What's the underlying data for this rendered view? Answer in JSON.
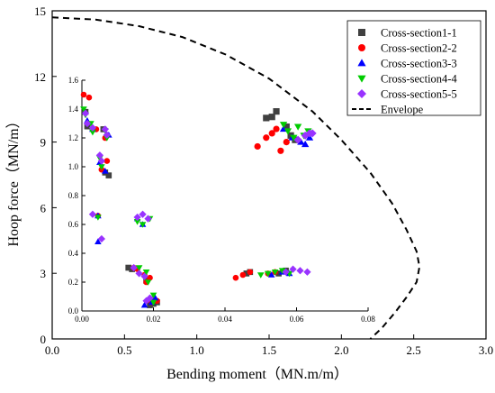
{
  "chart_data": [
    {
      "type": "scatter",
      "title": "",
      "xlabel": "Bending moment（MN.m/m）",
      "ylabel": "Hoop force（MN/m）",
      "xlim": [
        0.0,
        3.0
      ],
      "ylim": [
        0,
        15
      ],
      "xticks": [
        "0.0",
        "0.5",
        "1.0",
        "1.5",
        "2.0",
        "2.5",
        "3.0"
      ],
      "yticks": [
        "0",
        "3",
        "6",
        "9",
        "12",
        "15"
      ],
      "xtick_values": [
        0.0,
        0.5,
        1.0,
        1.5,
        2.0,
        2.5,
        3.0
      ],
      "ytick_values": [
        0,
        3,
        6,
        9,
        12,
        15
      ],
      "legend_position": "top-right",
      "series": [
        {
          "name": "Cross-section1-1",
          "marker": "square",
          "color": "#404040",
          "x": [
            1.48,
            1.52,
            1.55,
            1.62,
            1.65,
            1.68
          ],
          "y": [
            10.1,
            10.15,
            10.4,
            9.7,
            9.3,
            9.1
          ]
        },
        {
          "name": "Cross-section2-2",
          "marker": "circle",
          "color": "#ff0000",
          "x": [
            1.42,
            1.48,
            1.52,
            1.55,
            1.58,
            1.62
          ],
          "y": [
            8.8,
            9.2,
            9.4,
            9.6,
            8.6,
            9.0
          ]
        },
        {
          "name": "Cross-section3-3",
          "marker": "triangle-up",
          "color": "#0000ff",
          "x": [
            1.6,
            1.66,
            1.72,
            1.75,
            1.78
          ],
          "y": [
            9.6,
            9.2,
            9.0,
            8.9,
            9.2
          ]
        },
        {
          "name": "Cross-section4-4",
          "marker": "triangle-down",
          "color": "#00cc00",
          "x": [
            1.6,
            1.63,
            1.67,
            1.7,
            1.74,
            1.77
          ],
          "y": [
            9.8,
            9.5,
            9.2,
            9.7,
            9.3,
            9.5
          ]
        },
        {
          "name": "Cross-section5-5",
          "marker": "diamond",
          "color": "#9933ff",
          "x": [
            1.7,
            1.75,
            1.78,
            1.8
          ],
          "y": [
            9.1,
            9.3,
            9.4,
            9.4
          ]
        },
        {
          "name": "Envelope",
          "line": "dashed",
          "color": "#000000",
          "x": [
            0.0,
            0.3,
            0.6,
            0.9,
            1.2,
            1.5,
            1.8,
            2.0,
            2.2,
            2.35,
            2.45,
            2.52,
            2.54,
            2.52,
            2.45,
            2.37,
            2.28,
            2.2
          ],
          "y": [
            14.7,
            14.6,
            14.3,
            13.8,
            13.0,
            11.9,
            10.4,
            9.1,
            7.6,
            6.2,
            5.0,
            4.0,
            3.3,
            2.6,
            1.9,
            1.2,
            0.5,
            0.0
          ]
        }
      ]
    },
    {
      "type": "scatter",
      "title": "",
      "xlabel": "",
      "ylabel": "",
      "xlim": [
        0.0,
        0.08
      ],
      "ylim": [
        0.0,
        1.6
      ],
      "xticks": [
        "0.00",
        "0.02",
        "0.04",
        "0.06",
        "0.08"
      ],
      "yticks": [
        "0.0",
        "0.2",
        "0.4",
        "0.6",
        "0.8",
        "1.0",
        "1.2",
        "1.4",
        "1.6"
      ],
      "xtick_values": [
        0.0,
        0.02,
        0.04,
        0.06,
        0.08
      ],
      "ytick_values": [
        0.0,
        0.2,
        0.4,
        0.6,
        0.8,
        1.0,
        1.2,
        1.4,
        1.6
      ],
      "series": [
        {
          "name": "Cross-section1-1",
          "marker": "square",
          "color": "#404040",
          "x": [
            0.001,
            0.0015,
            0.006,
            0.0065,
            0.0075,
            0.013,
            0.014,
            0.018,
            0.019,
            0.02,
            0.021
          ],
          "y": [
            1.38,
            1.28,
            1.26,
            0.96,
            0.94,
            0.3,
            0.29,
            0.21,
            0.04,
            0.05,
            0.06
          ]
        },
        {
          "name": "Cross-section2-2",
          "marker": "circle",
          "color": "#ff0000",
          "x": [
            0.0005,
            0.002,
            0.004,
            0.0055,
            0.0065,
            0.007,
            0.0045,
            0.0145,
            0.0155,
            0.0175,
            0.018,
            0.019,
            0.0195,
            0.02,
            0.021
          ],
          "y": [
            1.5,
            1.48,
            1.26,
            0.98,
            1.2,
            1.04,
            0.66,
            0.3,
            0.29,
            0.25,
            0.2,
            0.23,
            0.06,
            0.08,
            0.07
          ]
        },
        {
          "name": "Cross-section3-3",
          "marker": "triangle-up",
          "color": "#0000ff",
          "x": [
            0.0015,
            0.003,
            0.005,
            0.0065,
            0.0075,
            0.0045,
            0.0045,
            0.0155,
            0.017,
            0.0175,
            0.0195,
            0.0205
          ],
          "y": [
            1.32,
            1.26,
            1.03,
            0.97,
            1.22,
            0.66,
            0.48,
            0.64,
            0.6,
            0.04,
            0.06,
            0.09
          ]
        },
        {
          "name": "Cross-section4-4",
          "marker": "triangle-down",
          "color": "#00cc00",
          "x": [
            0.0005,
            0.001,
            0.0025,
            0.003,
            0.005,
            0.0055,
            0.0065,
            0.007,
            0.0045,
            0.0155,
            0.017,
            0.019,
            0.016,
            0.018,
            0.0185,
            0.02,
            0.02
          ],
          "y": [
            1.4,
            1.36,
            1.3,
            1.24,
            1.06,
            1.0,
            1.25,
            1.2,
            0.65,
            0.62,
            0.6,
            0.64,
            0.3,
            0.27,
            0.2,
            0.11,
            0.06
          ]
        },
        {
          "name": "Cross-section5-5",
          "marker": "diamond",
          "color": "#9933ff",
          "x": [
            0.001,
            0.0015,
            0.003,
            0.005,
            0.0055,
            0.0065,
            0.007,
            0.003,
            0.0055,
            0.0155,
            0.017,
            0.0185,
            0.0145,
            0.016,
            0.0175,
            0.018,
            0.019
          ],
          "y": [
            1.37,
            1.3,
            1.27,
            1.08,
            1.04,
            1.26,
            1.22,
            0.67,
            0.5,
            0.65,
            0.67,
            0.64,
            0.3,
            0.26,
            0.24,
            0.07,
            0.09
          ]
        }
      ]
    },
    {
      "type": "scatter",
      "title": "",
      "xlabel": "",
      "ylabel": "",
      "xlim": [
        0.0,
        0.08
      ],
      "ylim": [
        0.0,
        1.6
      ],
      "series": [
        {
          "name": "Cross-section1-1",
          "marker": "square",
          "color": "#404040",
          "x": [
            0.046,
            0.047,
            0.055,
            0.057
          ],
          "y": [
            0.26,
            0.27,
            0.26,
            0.28
          ]
        },
        {
          "name": "Cross-section2-2",
          "marker": "circle",
          "color": "#ff0000",
          "x": [
            0.043,
            0.045,
            0.047,
            0.052,
            0.054
          ],
          "y": [
            0.23,
            0.25,
            0.27,
            0.26,
            0.27
          ]
        },
        {
          "name": "Cross-section3-3",
          "marker": "triangle-up",
          "color": "#0000ff",
          "x": [
            0.053,
            0.056,
            0.058
          ],
          "y": [
            0.25,
            0.27,
            0.26
          ]
        },
        {
          "name": "Cross-section4-4",
          "marker": "triangle-down",
          "color": "#00cc00",
          "x": [
            0.05,
            0.052,
            0.054,
            0.056,
            0.058
          ],
          "y": [
            0.25,
            0.26,
            0.27,
            0.28,
            0.26
          ]
        },
        {
          "name": "Cross-section5-5",
          "marker": "diamond",
          "color": "#9933ff",
          "x": [
            0.057,
            0.059,
            0.061,
            0.063
          ],
          "y": [
            0.27,
            0.29,
            0.28,
            0.27
          ]
        }
      ]
    }
  ]
}
